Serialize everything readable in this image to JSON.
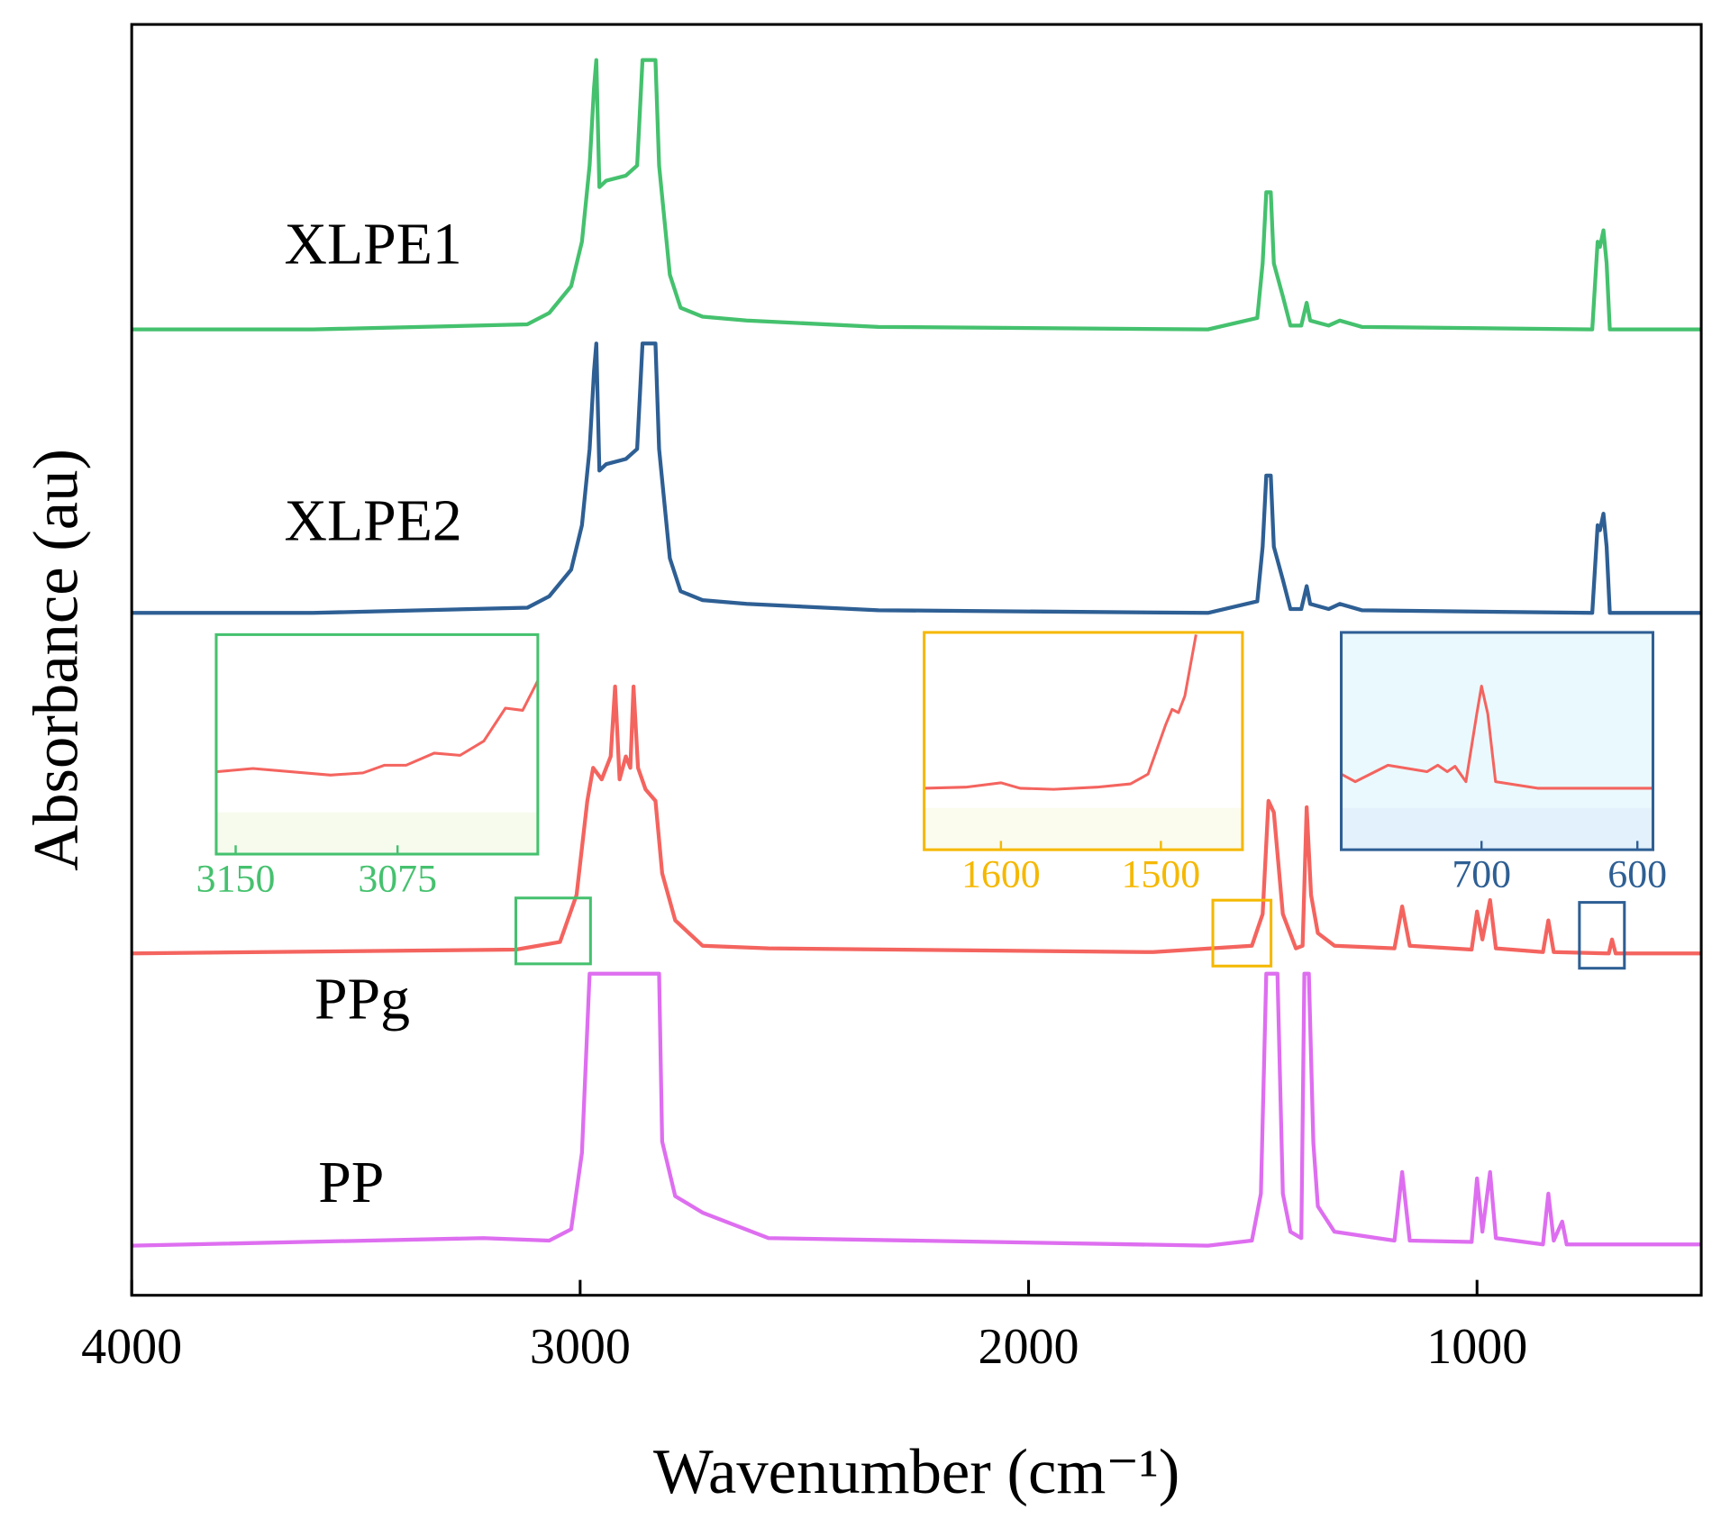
{
  "chart_data": [
    {
      "type": "line",
      "xlabel": "Wavenumber (cm⁻¹)",
      "ylabel": "Absorbance (au)",
      "xlim": [
        4000,
        500
      ],
      "xticks": [
        4000,
        3000,
        2000,
        1000
      ],
      "ylim": [
        0,
        100
      ],
      "series": [
        {
          "name": "XLPE1",
          "color": "#45c16e",
          "x": [
            4000,
            3596,
            3118,
            3069,
            3020,
            2996,
            2979,
            2969,
            2964,
            2957,
            2942,
            2898,
            2873,
            2861,
            2832,
            2824,
            2800,
            2776,
            2727,
            2629,
            2335,
            1600,
            1490,
            1478,
            1470,
            1460,
            1453,
            1433,
            1416,
            1392,
            1380,
            1372,
            1331,
            1306,
            1257,
            743,
            731,
            726,
            718,
            711,
            704,
            500
          ],
          "values": [
            76.0,
            76.0,
            76.4,
            77.3,
            79.4,
            82.9,
            88.9,
            95.0,
            97.2,
            87.2,
            87.7,
            88.1,
            88.9,
            97.2,
            97.2,
            88.9,
            80.3,
            77.7,
            77.0,
            76.7,
            76.2,
            76.0,
            76.9,
            81.2,
            86.8,
            86.8,
            81.2,
            78.6,
            76.3,
            76.3,
            78.1,
            76.7,
            76.3,
            76.7,
            76.2,
            76.0,
            82.9,
            82.5,
            83.8,
            81.2,
            76.0,
            76.0
          ]
        },
        {
          "name": "XLPE2",
          "color": "#2e5f94",
          "x": [
            4000,
            3596,
            3118,
            3069,
            3020,
            2996,
            2979,
            2969,
            2964,
            2957,
            2942,
            2898,
            2873,
            2861,
            2832,
            2824,
            2800,
            2776,
            2727,
            2629,
            2335,
            1600,
            1490,
            1478,
            1470,
            1460,
            1453,
            1433,
            1416,
            1392,
            1380,
            1372,
            1331,
            1306,
            1257,
            743,
            731,
            726,
            718,
            711,
            704,
            500
          ],
          "values": [
            53.7,
            53.7,
            54.1,
            55.0,
            57.1,
            60.6,
            66.6,
            72.7,
            74.9,
            64.9,
            65.4,
            65.8,
            66.6,
            74.9,
            74.9,
            66.6,
            58.0,
            55.4,
            54.7,
            54.4,
            53.9,
            53.7,
            54.6,
            58.9,
            64.5,
            64.5,
            58.9,
            56.3,
            54.0,
            54.0,
            55.8,
            54.4,
            54.0,
            54.4,
            53.9,
            53.7,
            60.6,
            60.2,
            61.5,
            58.9,
            53.7,
            53.7
          ]
        },
        {
          "name": "PPg",
          "color": "#f4645f",
          "x": [
            4000,
            3143,
            3045,
            3008,
            2984,
            2971,
            2952,
            2932,
            2922,
            2912,
            2898,
            2888,
            2881,
            2871,
            2854,
            2832,
            2817,
            2788,
            2727,
            2580,
            1722,
            1502,
            1478,
            1465,
            1453,
            1433,
            1404,
            1389,
            1380,
            1370,
            1355,
            1318,
            1184,
            1167,
            1150,
            1012,
            1000,
            988,
            971,
            958,
            853,
            841,
            829,
            706,
            699,
            691,
            500
          ],
          "values": [
            26.9,
            27.2,
            27.8,
            31.5,
            38.9,
            41.5,
            40.6,
            42.4,
            47.9,
            40.6,
            42.4,
            41.5,
            47.9,
            41.5,
            39.8,
            38.9,
            33.2,
            29.5,
            27.5,
            27.3,
            27.0,
            27.5,
            30.0,
            38.9,
            38.0,
            30.0,
            27.3,
            27.5,
            38.4,
            31.5,
            28.5,
            27.5,
            27.3,
            30.6,
            27.5,
            27.2,
            30.2,
            28.0,
            31.1,
            27.3,
            27.0,
            29.5,
            27.0,
            26.9,
            28.0,
            26.9,
            26.9
          ]
        },
        {
          "name": "PP",
          "color": "#de6ef0",
          "x": [
            4000,
            3216,
            3069,
            3020,
            2996,
            2979,
            2824,
            2817,
            2788,
            2727,
            2580,
            1600,
            1502,
            1482,
            1470,
            1445,
            1433,
            1416,
            1392,
            1385,
            1375,
            1365,
            1355,
            1318,
            1184,
            1167,
            1150,
            1012,
            1000,
            988,
            971,
            958,
            853,
            841,
            829,
            810,
            800,
            500
          ],
          "values": [
            3.9,
            4.5,
            4.3,
            5.2,
            11.2,
            25.3,
            25.3,
            12.1,
            7.8,
            6.5,
            4.5,
            3.9,
            4.3,
            8.0,
            25.3,
            25.3,
            8.0,
            5.0,
            4.5,
            25.3,
            25.3,
            12.0,
            7.0,
            5.0,
            4.3,
            9.7,
            4.3,
            4.2,
            9.2,
            5.0,
            9.7,
            4.5,
            4.0,
            8.0,
            4.3,
            5.8,
            4.0,
            4.0
          ]
        }
      ]
    },
    {
      "type": "line",
      "xlim": [
        3159,
        3010
      ],
      "xticks": [
        3150,
        3075
      ],
      "ylim": [
        0,
        100
      ],
      "color": "#45c16e",
      "series": [
        {
          "color": "#f4645f",
          "x": [
            3159,
            3142,
            3106,
            3091,
            3081,
            3071,
            3058,
            3046,
            3035,
            3025,
            3017,
            3010
          ],
          "values": [
            37.5,
            39.0,
            36.0,
            37.0,
            40.5,
            40.5,
            46.0,
            45.0,
            51.5,
            66.5,
            65.5,
            79.0
          ]
        }
      ]
    },
    {
      "type": "line",
      "xlim": [
        1648,
        1449
      ],
      "xticks": [
        1600,
        1500
      ],
      "ylim": [
        0,
        100
      ],
      "color": "#f5b800",
      "series": [
        {
          "color": "#f4645f",
          "x": [
            1648,
            1622,
            1600,
            1588,
            1567,
            1540,
            1519,
            1508,
            1497,
            1493,
            1489,
            1485,
            1478
          ],
          "values": [
            28.3,
            28.8,
            30.8,
            28.3,
            27.8,
            28.8,
            30.3,
            34.8,
            57.6,
            64.6,
            63.1,
            70.7,
            99.0
          ]
        }
      ]
    },
    {
      "type": "line",
      "xlim": [
        790,
        590
      ],
      "xticks": [
        700,
        600
      ],
      "ylim": [
        0,
        100
      ],
      "color": "#2e5f94",
      "series": [
        {
          "color": "#f4645f",
          "x": [
            790,
            781,
            760,
            735,
            728,
            722,
            717,
            710,
            703,
            700,
            696,
            691,
            664,
            590
          ],
          "values": [
            34.8,
            31.3,
            38.9,
            35.9,
            38.9,
            35.9,
            38.4,
            31.3,
            62.6,
            75.3,
            62.6,
            31.3,
            28.3,
            28.3
          ]
        }
      ]
    }
  ]
}
